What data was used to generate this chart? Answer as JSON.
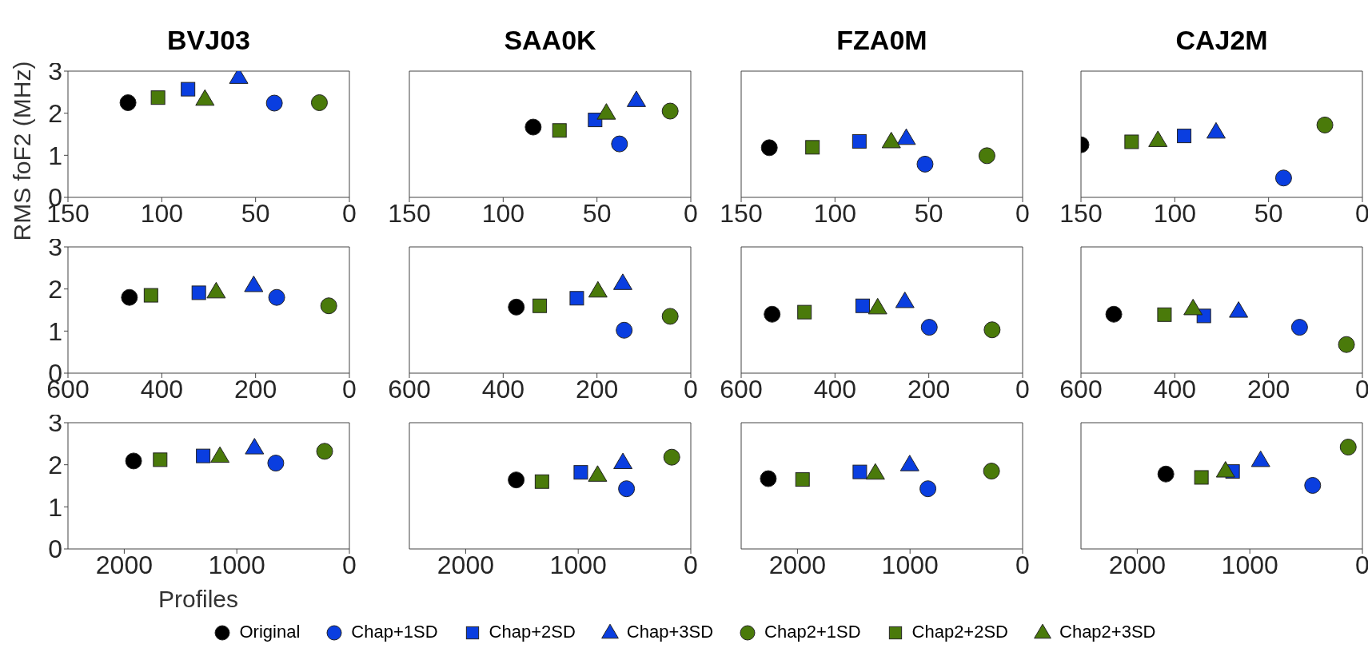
{
  "chart_data": [
    {
      "type": "scatter",
      "title": "BVJ03",
      "ylabel": "RMS foF2 (MHz)",
      "xlim": [
        150,
        0
      ],
      "xticks": [
        150,
        100,
        50,
        0
      ],
      "ylim": [
        0,
        3
      ],
      "yticks": [
        0,
        1,
        2,
        3
      ],
      "series": [
        {
          "color": "#000000",
          "marker": "circle",
          "x": [
            118
          ],
          "values": [
            2.25
          ]
        },
        {
          "color": "#0a3ee0",
          "marker": "circle",
          "x": [
            40
          ],
          "values": [
            2.24
          ]
        },
        {
          "color": "#0a3ee0",
          "marker": "square",
          "x": [
            86
          ],
          "values": [
            2.57
          ]
        },
        {
          "color": "#0a3ee0",
          "marker": "triangle",
          "x": [
            59
          ],
          "values": [
            2.85
          ]
        },
        {
          "color": "#4a7a0a",
          "marker": "circle",
          "x": [
            16
          ],
          "values": [
            2.25
          ]
        },
        {
          "color": "#4a7a0a",
          "marker": "square",
          "x": [
            102
          ],
          "values": [
            2.37
          ]
        },
        {
          "color": "#4a7a0a",
          "marker": "triangle",
          "x": [
            77
          ],
          "values": [
            2.33
          ]
        }
      ]
    },
    {
      "type": "scatter",
      "title": "SAA0K",
      "xlim": [
        150,
        0
      ],
      "xticks": [
        150,
        100,
        50,
        0
      ],
      "ylim": [
        0,
        3
      ],
      "tick_labels": "x",
      "series": [
        {
          "color": "#000000",
          "marker": "circle",
          "x": [
            84
          ],
          "values": [
            1.67
          ]
        },
        {
          "color": "#0a3ee0",
          "marker": "circle",
          "x": [
            38
          ],
          "values": [
            1.27
          ]
        },
        {
          "color": "#0a3ee0",
          "marker": "square",
          "x": [
            51
          ],
          "values": [
            1.84
          ]
        },
        {
          "color": "#0a3ee0",
          "marker": "triangle",
          "x": [
            29
          ],
          "values": [
            2.3
          ]
        },
        {
          "color": "#4a7a0a",
          "marker": "circle",
          "x": [
            11
          ],
          "values": [
            2.05
          ]
        },
        {
          "color": "#4a7a0a",
          "marker": "square",
          "x": [
            70
          ],
          "values": [
            1.59
          ]
        },
        {
          "color": "#4a7a0a",
          "marker": "triangle",
          "x": [
            45
          ],
          "values": [
            2.0
          ]
        }
      ]
    },
    {
      "type": "scatter",
      "title": "FZA0M",
      "xlim": [
        150,
        0
      ],
      "xticks": [
        150,
        100,
        50,
        0
      ],
      "ylim": [
        0,
        3
      ],
      "tick_labels": "x",
      "series": [
        {
          "color": "#000000",
          "marker": "circle",
          "x": [
            135
          ],
          "values": [
            1.18
          ]
        },
        {
          "color": "#0a3ee0",
          "marker": "circle",
          "x": [
            52
          ],
          "values": [
            0.79
          ]
        },
        {
          "color": "#0a3ee0",
          "marker": "square",
          "x": [
            87
          ],
          "values": [
            1.33
          ]
        },
        {
          "color": "#0a3ee0",
          "marker": "triangle",
          "x": [
            62
          ],
          "values": [
            1.4
          ]
        },
        {
          "color": "#4a7a0a",
          "marker": "circle",
          "x": [
            19
          ],
          "values": [
            0.99
          ]
        },
        {
          "color": "#4a7a0a",
          "marker": "square",
          "x": [
            112
          ],
          "values": [
            1.19
          ]
        },
        {
          "color": "#4a7a0a",
          "marker": "triangle",
          "x": [
            70
          ],
          "values": [
            1.32
          ]
        }
      ]
    },
    {
      "type": "scatter",
      "title": "CAJ2M",
      "xlim": [
        150,
        0
      ],
      "xticks": [
        150,
        100,
        50,
        0
      ],
      "ylim": [
        0,
        3
      ],
      "tick_labels": "x",
      "series": [
        {
          "color": "#000000",
          "marker": "circle",
          "x": [
            150
          ],
          "values": [
            1.25
          ]
        },
        {
          "color": "#0a3ee0",
          "marker": "circle",
          "x": [
            42
          ],
          "values": [
            0.46
          ]
        },
        {
          "color": "#0a3ee0",
          "marker": "square",
          "x": [
            95
          ],
          "values": [
            1.46
          ]
        },
        {
          "color": "#0a3ee0",
          "marker": "triangle",
          "x": [
            78
          ],
          "values": [
            1.55
          ]
        },
        {
          "color": "#4a7a0a",
          "marker": "circle",
          "x": [
            20
          ],
          "values": [
            1.72
          ]
        },
        {
          "color": "#4a7a0a",
          "marker": "square",
          "x": [
            123
          ],
          "values": [
            1.32
          ]
        },
        {
          "color": "#4a7a0a",
          "marker": "triangle",
          "x": [
            109
          ],
          "values": [
            1.35
          ]
        }
      ]
    },
    {
      "type": "scatter",
      "xlim": [
        600,
        0
      ],
      "xticks": [
        600,
        400,
        200,
        0
      ],
      "ylim": [
        0,
        3
      ],
      "yticks": [
        0,
        1,
        2,
        3
      ],
      "series": [
        {
          "color": "#000000",
          "marker": "circle",
          "x": [
            469
          ],
          "values": [
            1.8
          ]
        },
        {
          "color": "#0a3ee0",
          "marker": "circle",
          "x": [
            155
          ],
          "values": [
            1.8
          ]
        },
        {
          "color": "#0a3ee0",
          "marker": "square",
          "x": [
            321
          ],
          "values": [
            1.91
          ]
        },
        {
          "color": "#0a3ee0",
          "marker": "triangle",
          "x": [
            204
          ],
          "values": [
            2.08
          ]
        },
        {
          "color": "#4a7a0a",
          "marker": "circle",
          "x": [
            44
          ],
          "values": [
            1.6
          ]
        },
        {
          "color": "#4a7a0a",
          "marker": "square",
          "x": [
            423
          ],
          "values": [
            1.85
          ]
        },
        {
          "color": "#4a7a0a",
          "marker": "triangle",
          "x": [
            284
          ],
          "values": [
            1.93
          ]
        }
      ]
    },
    {
      "type": "scatter",
      "xlim": [
        600,
        0
      ],
      "xticks": [
        600,
        400,
        200,
        0
      ],
      "ylim": [
        0,
        3
      ],
      "tick_labels": "x",
      "series": [
        {
          "color": "#000000",
          "marker": "circle",
          "x": [
            372
          ],
          "values": [
            1.57
          ]
        },
        {
          "color": "#0a3ee0",
          "marker": "circle",
          "x": [
            142
          ],
          "values": [
            1.02
          ]
        },
        {
          "color": "#0a3ee0",
          "marker": "square",
          "x": [
            243
          ],
          "values": [
            1.78
          ]
        },
        {
          "color": "#0a3ee0",
          "marker": "triangle",
          "x": [
            145
          ],
          "values": [
            2.13
          ]
        },
        {
          "color": "#4a7a0a",
          "marker": "circle",
          "x": [
            44
          ],
          "values": [
            1.35
          ]
        },
        {
          "color": "#4a7a0a",
          "marker": "square",
          "x": [
            322
          ],
          "values": [
            1.6
          ]
        },
        {
          "color": "#4a7a0a",
          "marker": "triangle",
          "x": [
            198
          ],
          "values": [
            1.95
          ]
        }
      ]
    },
    {
      "type": "scatter",
      "xlim": [
        600,
        0
      ],
      "xticks": [
        600,
        400,
        200,
        0
      ],
      "ylim": [
        0,
        3
      ],
      "tick_labels": "x",
      "series": [
        {
          "color": "#000000",
          "marker": "circle",
          "x": [
            534
          ],
          "values": [
            1.4
          ]
        },
        {
          "color": "#0a3ee0",
          "marker": "circle",
          "x": [
            199
          ],
          "values": [
            1.09
          ]
        },
        {
          "color": "#0a3ee0",
          "marker": "square",
          "x": [
            341
          ],
          "values": [
            1.6
          ]
        },
        {
          "color": "#0a3ee0",
          "marker": "triangle",
          "x": [
            251
          ],
          "values": [
            1.7
          ]
        },
        {
          "color": "#4a7a0a",
          "marker": "circle",
          "x": [
            65
          ],
          "values": [
            1.03
          ]
        },
        {
          "color": "#4a7a0a",
          "marker": "square",
          "x": [
            465
          ],
          "values": [
            1.45
          ]
        },
        {
          "color": "#4a7a0a",
          "marker": "triangle",
          "x": [
            309
          ],
          "values": [
            1.55
          ]
        }
      ]
    },
    {
      "type": "scatter",
      "xlim": [
        600,
        0
      ],
      "xticks": [
        600,
        400,
        200,
        0
      ],
      "ylim": [
        0,
        3
      ],
      "tick_labels": "x",
      "series": [
        {
          "color": "#000000",
          "marker": "circle",
          "x": [
            530
          ],
          "values": [
            1.4
          ]
        },
        {
          "color": "#0a3ee0",
          "marker": "circle",
          "x": [
            134
          ],
          "values": [
            1.09
          ]
        },
        {
          "color": "#0a3ee0",
          "marker": "square",
          "x": [
            338
          ],
          "values": [
            1.36
          ]
        },
        {
          "color": "#0a3ee0",
          "marker": "triangle",
          "x": [
            264
          ],
          "values": [
            1.47
          ]
        },
        {
          "color": "#4a7a0a",
          "marker": "circle",
          "x": [
            34
          ],
          "values": [
            0.68
          ]
        },
        {
          "color": "#4a7a0a",
          "marker": "square",
          "x": [
            422
          ],
          "values": [
            1.39
          ]
        },
        {
          "color": "#4a7a0a",
          "marker": "triangle",
          "x": [
            361
          ],
          "values": [
            1.53
          ]
        }
      ]
    },
    {
      "type": "scatter",
      "xlabel": "Profiles",
      "xlim": [
        2500,
        0
      ],
      "xticks": [
        2000,
        1000,
        0
      ],
      "ylim": [
        0,
        3
      ],
      "yticks": [
        0,
        1,
        2,
        3
      ],
      "series": [
        {
          "color": "#000000",
          "marker": "circle",
          "x": [
            1917
          ],
          "values": [
            2.09
          ]
        },
        {
          "color": "#0a3ee0",
          "marker": "circle",
          "x": [
            654
          ],
          "values": [
            2.04
          ]
        },
        {
          "color": "#0a3ee0",
          "marker": "square",
          "x": [
            1299
          ],
          "values": [
            2.21
          ]
        },
        {
          "color": "#0a3ee0",
          "marker": "triangle",
          "x": [
            843
          ],
          "values": [
            2.4
          ]
        },
        {
          "color": "#4a7a0a",
          "marker": "circle",
          "x": [
            220
          ],
          "values": [
            2.32
          ]
        },
        {
          "color": "#4a7a0a",
          "marker": "square",
          "x": [
            1681
          ],
          "values": [
            2.12
          ]
        },
        {
          "color": "#4a7a0a",
          "marker": "triangle",
          "x": [
            1150
          ],
          "values": [
            2.2
          ]
        }
      ]
    },
    {
      "type": "scatter",
      "xlim": [
        2500,
        0
      ],
      "xticks": [
        2000,
        1000,
        0
      ],
      "ylim": [
        0,
        3
      ],
      "tick_labels": "x",
      "series": [
        {
          "color": "#000000",
          "marker": "circle",
          "x": [
            1551
          ],
          "values": [
            1.64
          ]
        },
        {
          "color": "#0a3ee0",
          "marker": "circle",
          "x": [
            571
          ],
          "values": [
            1.43
          ]
        },
        {
          "color": "#0a3ee0",
          "marker": "square",
          "x": [
            977
          ],
          "values": [
            1.82
          ]
        },
        {
          "color": "#0a3ee0",
          "marker": "triangle",
          "x": [
            603
          ],
          "values": [
            2.05
          ]
        },
        {
          "color": "#4a7a0a",
          "marker": "circle",
          "x": [
            169
          ],
          "values": [
            2.18
          ]
        },
        {
          "color": "#4a7a0a",
          "marker": "square",
          "x": [
            1322
          ],
          "values": [
            1.6
          ]
        },
        {
          "color": "#4a7a0a",
          "marker": "triangle",
          "x": [
            828
          ],
          "values": [
            1.75
          ]
        }
      ]
    },
    {
      "type": "scatter",
      "xlim": [
        2500,
        0
      ],
      "xticks": [
        2000,
        1000,
        0
      ],
      "ylim": [
        0,
        3
      ],
      "tick_labels": "x",
      "series": [
        {
          "color": "#000000",
          "marker": "circle",
          "x": [
            2259
          ],
          "values": [
            1.67
          ]
        },
        {
          "color": "#0a3ee0",
          "marker": "circle",
          "x": [
            841
          ],
          "values": [
            1.43
          ]
        },
        {
          "color": "#0a3ee0",
          "marker": "square",
          "x": [
            1446
          ],
          "values": [
            1.83
          ]
        },
        {
          "color": "#0a3ee0",
          "marker": "triangle",
          "x": [
            1003
          ],
          "values": [
            2.0
          ]
        },
        {
          "color": "#4a7a0a",
          "marker": "circle",
          "x": [
            276
          ],
          "values": [
            1.85
          ]
        },
        {
          "color": "#4a7a0a",
          "marker": "square",
          "x": [
            1955
          ],
          "values": [
            1.65
          ]
        },
        {
          "color": "#4a7a0a",
          "marker": "triangle",
          "x": [
            1308
          ],
          "values": [
            1.8
          ]
        }
      ]
    },
    {
      "type": "scatter",
      "xlim": [
        2500,
        0
      ],
      "xticks": [
        2000,
        1000,
        0
      ],
      "ylim": [
        0,
        3
      ],
      "tick_labels": "x",
      "legend": "bottom",
      "series": [
        {
          "name": "Original",
          "color": "#000000",
          "marker": "circle",
          "x": [
            1746
          ],
          "values": [
            1.78
          ]
        },
        {
          "name": "Chap+1SD",
          "color": "#0a3ee0",
          "marker": "circle",
          "x": [
            442
          ],
          "values": [
            1.51
          ]
        },
        {
          "name": "Chap+2SD",
          "color": "#0a3ee0",
          "marker": "square",
          "x": [
            1153
          ],
          "values": [
            1.84
          ]
        },
        {
          "name": "Chap+3SD",
          "color": "#0a3ee0",
          "marker": "triangle",
          "x": [
            904
          ],
          "values": [
            2.1
          ]
        },
        {
          "name": "Chap2+1SD",
          "color": "#4a7a0a",
          "marker": "circle",
          "x": [
            126
          ],
          "values": [
            2.42
          ]
        },
        {
          "name": "Chap2+2SD",
          "color": "#4a7a0a",
          "marker": "square",
          "x": [
            1430
          ],
          "values": [
            1.7
          ]
        },
        {
          "name": "Chap2+3SD",
          "color": "#4a7a0a",
          "marker": "triangle",
          "x": [
            1216
          ],
          "values": [
            1.85
          ]
        }
      ]
    }
  ]
}
